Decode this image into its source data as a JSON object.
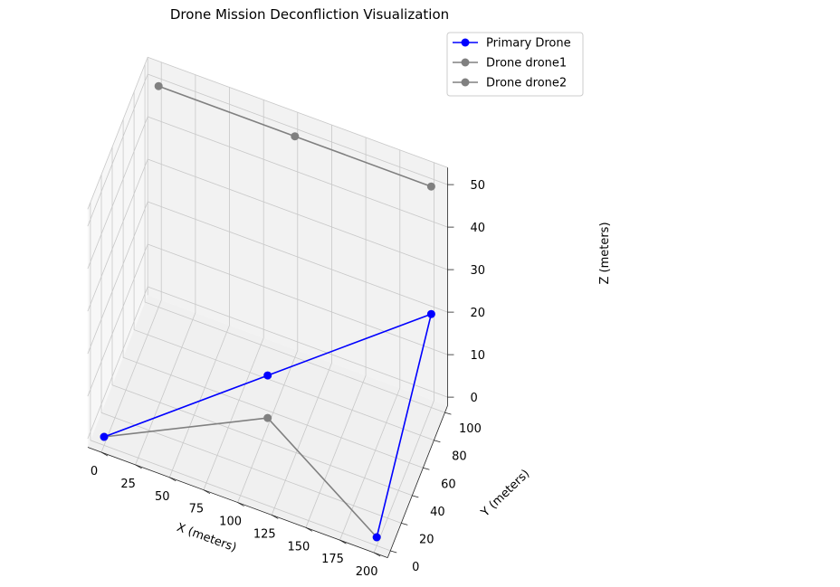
{
  "chart_data": {
    "type": "line",
    "projection": "3d",
    "title": "Drone Mission Deconfliction Visualization",
    "xlabel": "X (meters)",
    "ylabel": "Y (meters)",
    "zlabel": "Z (meters)",
    "xlim": [
      -10,
      210
    ],
    "ylim": [
      -5,
      105
    ],
    "zlim": [
      0,
      50
    ],
    "x_ticks": [
      "0",
      "25",
      "50",
      "75",
      "100",
      "125",
      "150",
      "175",
      "200"
    ],
    "y_ticks": [
      "0",
      "20",
      "40",
      "60",
      "80",
      "100"
    ],
    "z_ticks": [
      "0",
      "10",
      "20",
      "30",
      "40",
      "50"
    ],
    "grid": true,
    "legend_position": "top-right",
    "colors": {
      "primary": "#0000ff",
      "other": "#808080"
    },
    "series": [
      {
        "name": "Primary Drone",
        "color": "#0000ff",
        "points": [
          {
            "x": 0,
            "y": 0,
            "z": 0
          },
          {
            "x": 100,
            "y": 50,
            "z": 10
          },
          {
            "x": 200,
            "y": 100,
            "z": 20
          },
          {
            "x": 200,
            "y": 0,
            "z": 0
          }
        ]
      },
      {
        "name": "Drone drone1",
        "color": "#808080",
        "points": [
          {
            "x": 0,
            "y": 0,
            "z": 0
          },
          {
            "x": 100,
            "y": 50,
            "z": 0
          },
          {
            "x": 200,
            "y": 0,
            "z": 0
          }
        ]
      },
      {
        "name": "Drone drone2",
        "color": "#808080",
        "points": [
          {
            "x": 0,
            "y": 100,
            "z": 50
          },
          {
            "x": 100,
            "y": 100,
            "z": 50
          },
          {
            "x": 200,
            "y": 100,
            "z": 50
          }
        ]
      }
    ]
  }
}
